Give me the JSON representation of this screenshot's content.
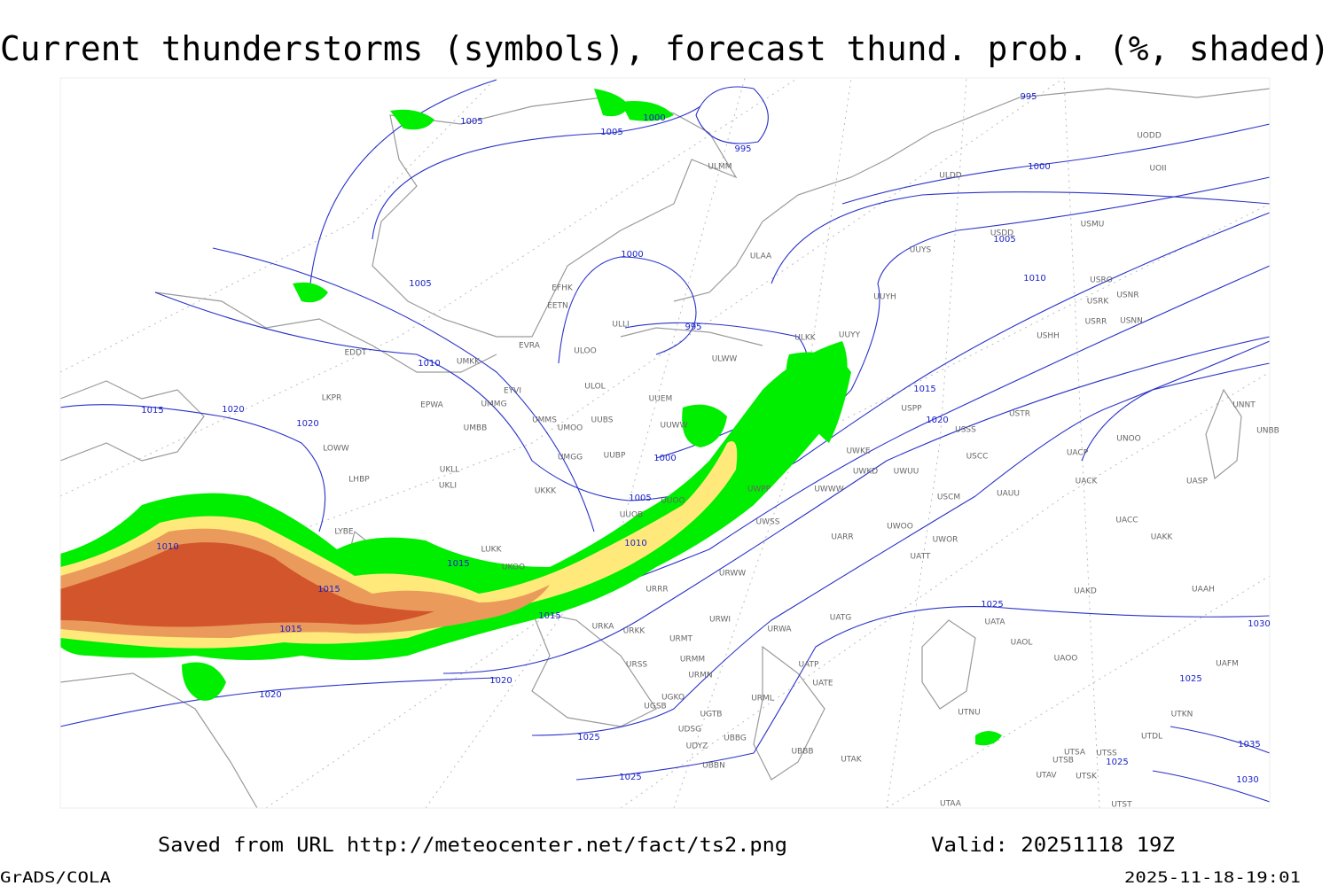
{
  "header": {
    "title": "Current thunderstorms (symbols), forecast thund. prob. (%, shaded)"
  },
  "footer": {
    "source": "Saved from URL http://meteocenter.net/fact/ts2.png",
    "valid": "Valid: 20251118 19Z",
    "software": "GrADS/COLA",
    "timestamp": "2025-11-18-19:01"
  },
  "map": {
    "isobar_labels": [
      1005,
      1000,
      1005,
      995,
      995,
      1000,
      1005,
      1010,
      1000,
      1005,
      995,
      1010,
      1015,
      1020,
      1020,
      1015,
      1020,
      1000,
      1005,
      1010,
      1010,
      1015,
      1015,
      1015,
      1015,
      1025,
      1020,
      1020,
      1025,
      1025,
      1025,
      1025,
      1030,
      1035,
      1030
    ],
    "stations": [
      "ULMM",
      "ULDD",
      "UODD",
      "UOII",
      "USMU",
      "USDD",
      "ULAA",
      "UUYS",
      "UUYH",
      "USRO",
      "USRK",
      "USNR",
      "USRR",
      "USNN",
      "USHH",
      "ULKK",
      "UUYY",
      "ULWW",
      "EFHK",
      "EETN",
      "ULLI",
      "ULOO",
      "EVRA",
      "EDDT",
      "UMKK",
      "ULOL",
      "EYVI",
      "UMMG",
      "EPWA",
      "LKPR",
      "UUEM",
      "UMMS",
      "UMOO",
      "UUBS",
      "UUWW",
      "UMBB",
      "LOWW",
      "UUBP",
      "UMGG",
      "UKLL",
      "UKLI",
      "LHBP",
      "UKKK",
      "UUOO",
      "UWPP",
      "UWWW",
      "UWKE",
      "UWKD",
      "UWUU",
      "USSS",
      "USCC",
      "USPP",
      "USTR",
      "UACP",
      "UACK",
      "UASP",
      "UNOO",
      "UNNT",
      "UNBB",
      "USCM",
      "UAUU",
      "UUOB",
      "LYBE",
      "LUKK",
      "UKOO",
      "UWSS",
      "UARR",
      "UWOO",
      "UWOR",
      "UATT",
      "UACC",
      "UAKK",
      "UAKD",
      "UAAH",
      "URRR",
      "URWW",
      "URWI",
      "UATG",
      "UATA",
      "UAOL",
      "UAOO",
      "UAFM",
      "URKA",
      "URKK",
      "URMT",
      "URWA",
      "URSS",
      "URMM",
      "URMN",
      "UATP",
      "UATE",
      "UGKO",
      "URML",
      "UGSB",
      "UGTB",
      "UTNU",
      "UTDL",
      "UTKN",
      "UDSG",
      "UBBG",
      "UDYZ",
      "UBBB",
      "UTSA",
      "UTSS",
      "UTSB",
      "UTAK",
      "UBBN",
      "UTAV",
      "UTSK",
      "UTST",
      "UTAA"
    ]
  }
}
